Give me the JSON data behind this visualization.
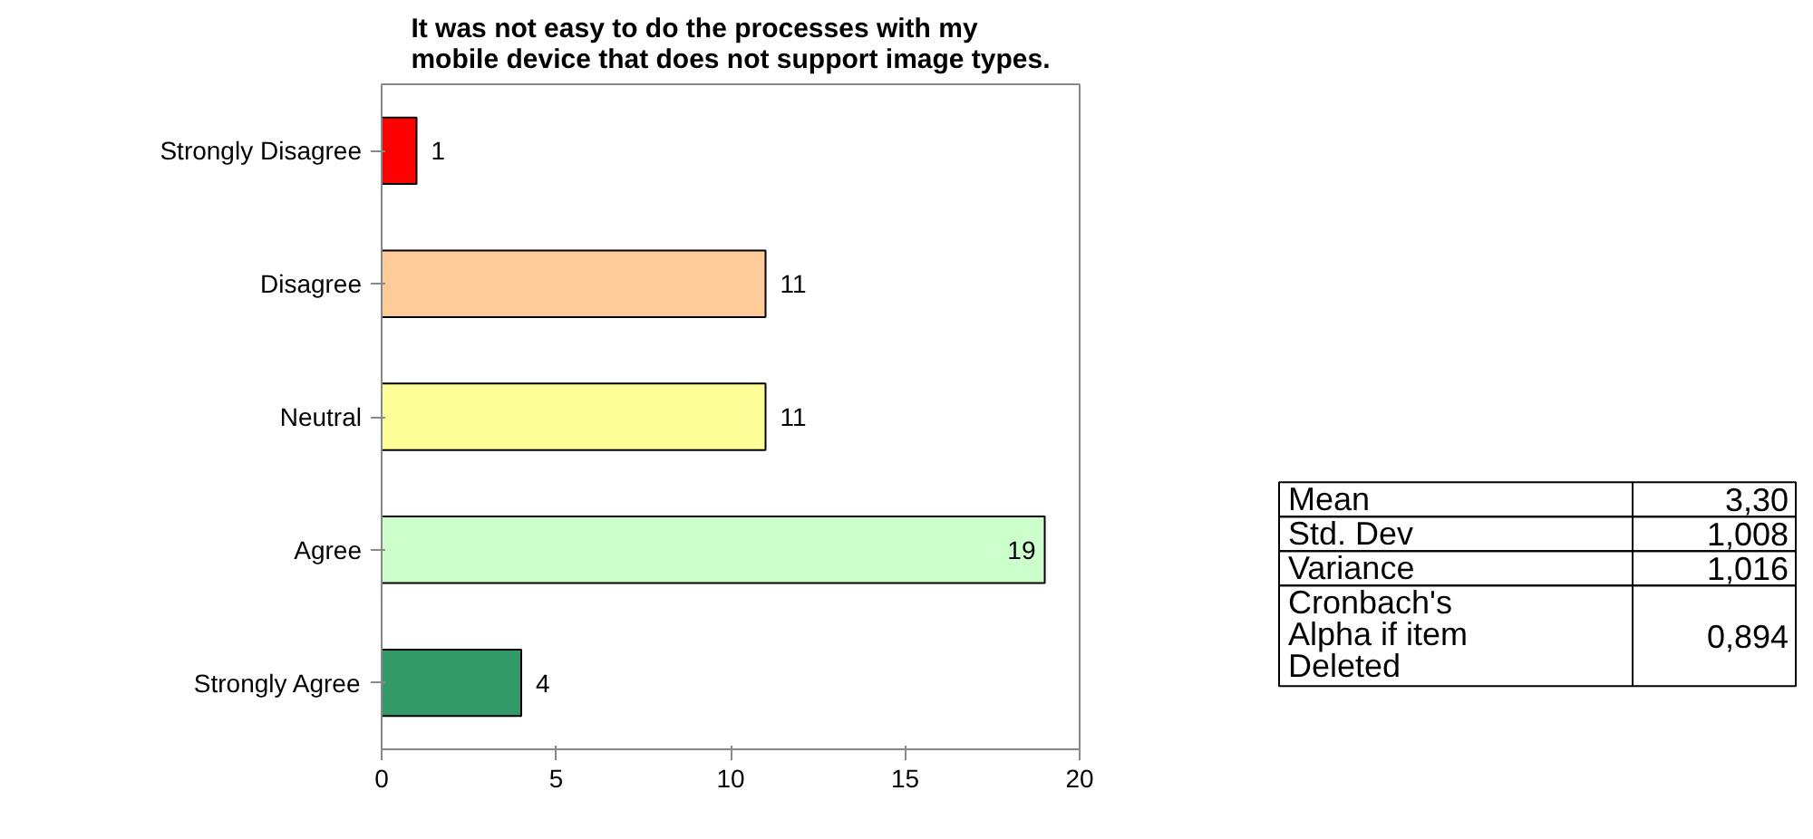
{
  "chart_data": [
    {
      "type": "bar",
      "orientation": "horizontal",
      "title": "It was not easy to do the processes with my mobile device that does not support image types.",
      "categories": [
        "Strongly Disagree",
        "Disagree",
        "Neutral",
        "Agree",
        "Strongly Agree"
      ],
      "values": [
        1,
        11,
        11,
        19,
        4
      ],
      "colors": [
        "#ff0000",
        "#ffcc99",
        "#ffff99",
        "#ccffcc",
        "#339966"
      ],
      "xlim": [
        0,
        20
      ],
      "xticks": [
        0,
        5,
        10,
        15,
        20
      ],
      "grid": false,
      "data_labels": true
    },
    {
      "type": "other",
      "annotations": [
        "Mean",
        "3,30",
        "Std. Dev",
        "1,008",
        "Variance",
        "1,016",
        "Cronbach's Alpha if item Deleted",
        "0,894"
      ]
    }
  ]
}
